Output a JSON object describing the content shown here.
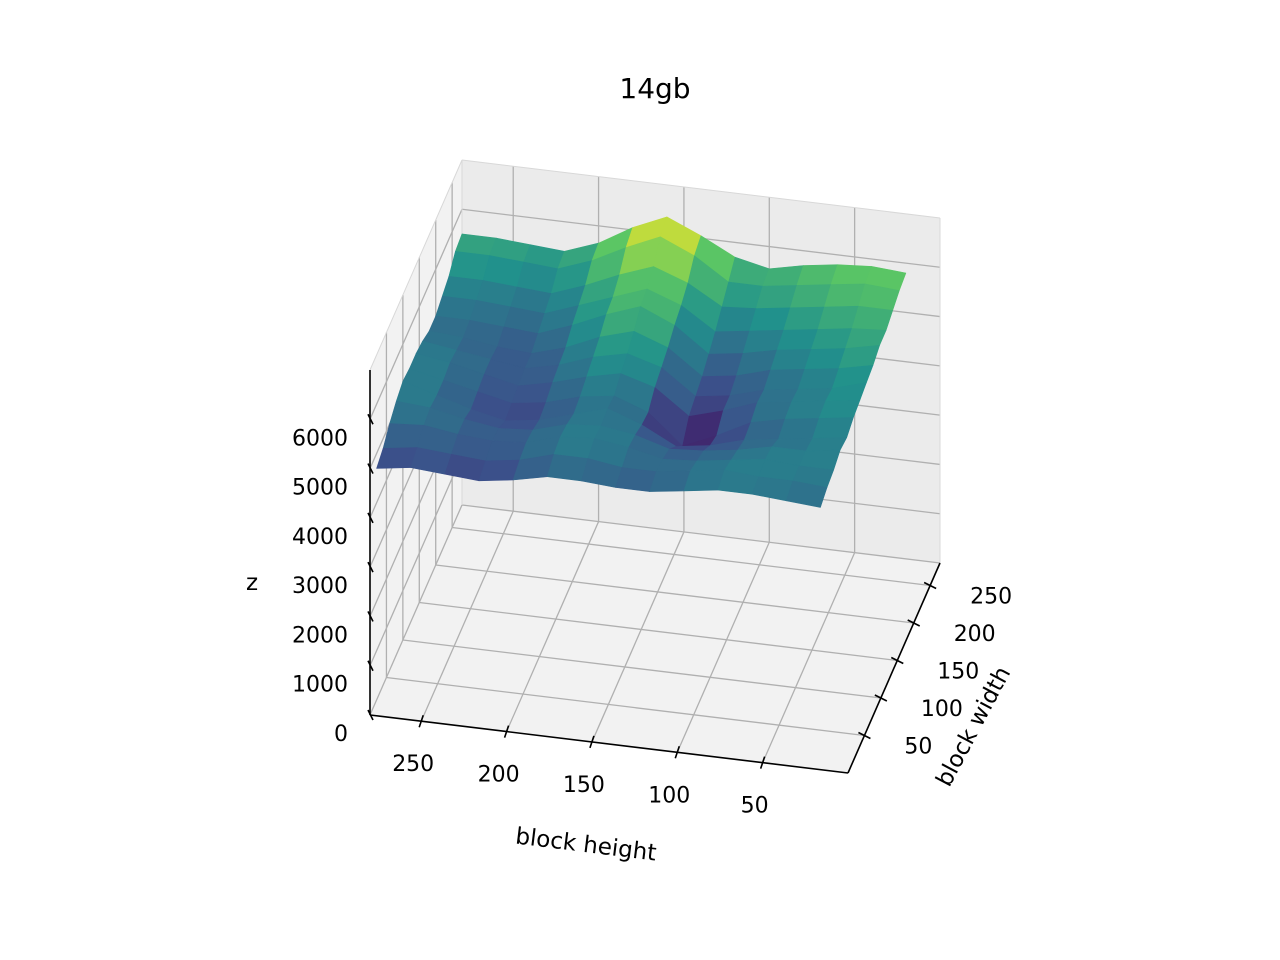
{
  "chart_data": {
    "type": "surface",
    "title": "14gb",
    "xlabel": "block height",
    "ylabel": "block width",
    "zlabel": "z",
    "x_ticks": [
      250,
      200,
      150,
      100,
      50
    ],
    "y_ticks": [
      250,
      200,
      150,
      100,
      50
    ],
    "z_ticks": [
      0,
      1000,
      2000,
      3000,
      4000,
      5000,
      6000
    ],
    "xlim": [
      0,
      280
    ],
    "ylim": [
      0,
      280
    ],
    "zlim": [
      0,
      7000
    ],
    "colormap": [
      "#440154",
      "#3b528b",
      "#21918c",
      "#5ec962",
      "#fde725"
    ],
    "x": [
      20,
      40,
      60,
      80,
      100,
      120,
      140,
      160,
      180,
      200,
      220,
      240,
      260,
      280
    ],
    "y": [
      20,
      40,
      60,
      80,
      100,
      120,
      140,
      160,
      180,
      200,
      220,
      240,
      260,
      280
    ],
    "z": [
      [
        5000,
        5100,
        5150,
        5250,
        5200,
        5300,
        5350,
        5400,
        5450,
        5550,
        5550,
        5650,
        5750,
        5800
      ],
      [
        5050,
        5150,
        5150,
        5150,
        5100,
        5200,
        5250,
        5200,
        5300,
        5400,
        5500,
        5650,
        5800,
        5850
      ],
      [
        5100,
        5150,
        5200,
        5150,
        5000,
        5100,
        5150,
        5100,
        5200,
        5300,
        5400,
        5550,
        5700,
        5800
      ],
      [
        5100,
        5200,
        5100,
        5000,
        4900,
        4950,
        5050,
        5000,
        5100,
        5200,
        5300,
        5450,
        5600,
        5700
      ],
      [
        5000,
        5100,
        5000,
        4900,
        4700,
        4600,
        4800,
        4800,
        4900,
        5050,
        5200,
        5350,
        5500,
        5550
      ],
      [
        4900,
        5000,
        4950,
        4850,
        4600,
        4300,
        4600,
        4700,
        4800,
        4950,
        5100,
        5300,
        5500,
        5700
      ],
      [
        4900,
        5000,
        5100,
        5050,
        4950,
        4900,
        5100,
        5200,
        5300,
        5450,
        5550,
        5700,
        5950,
        6050
      ],
      [
        4950,
        5100,
        5200,
        5150,
        5200,
        5150,
        5300,
        5400,
        5550,
        5750,
        5800,
        5950,
        6250,
        6350
      ],
      [
        4950,
        5100,
        5150,
        5100,
        5000,
        5050,
        5150,
        5250,
        5350,
        5500,
        5550,
        5700,
        5950,
        6050
      ],
      [
        4800,
        4900,
        4950,
        4900,
        4800,
        4850,
        4950,
        5000,
        5050,
        5200,
        5300,
        5400,
        5600,
        5650
      ],
      [
        4700,
        4800,
        4900,
        4850,
        4700,
        4750,
        4800,
        4850,
        4850,
        4950,
        5050,
        5150,
        5350,
        5400
      ],
      [
        4750,
        4850,
        4950,
        4950,
        4850,
        4900,
        4950,
        4950,
        4900,
        5000,
        5100,
        5200,
        5400,
        5450
      ],
      [
        4800,
        4900,
        5050,
        5100,
        5050,
        5050,
        5100,
        5050,
        5000,
        5050,
        5150,
        5250,
        5450,
        5500
      ],
      [
        4700,
        4800,
        5000,
        5150,
        5250,
        5200,
        5200,
        5150,
        5050,
        5050,
        5150,
        5250,
        5450,
        5500
      ]
    ]
  }
}
